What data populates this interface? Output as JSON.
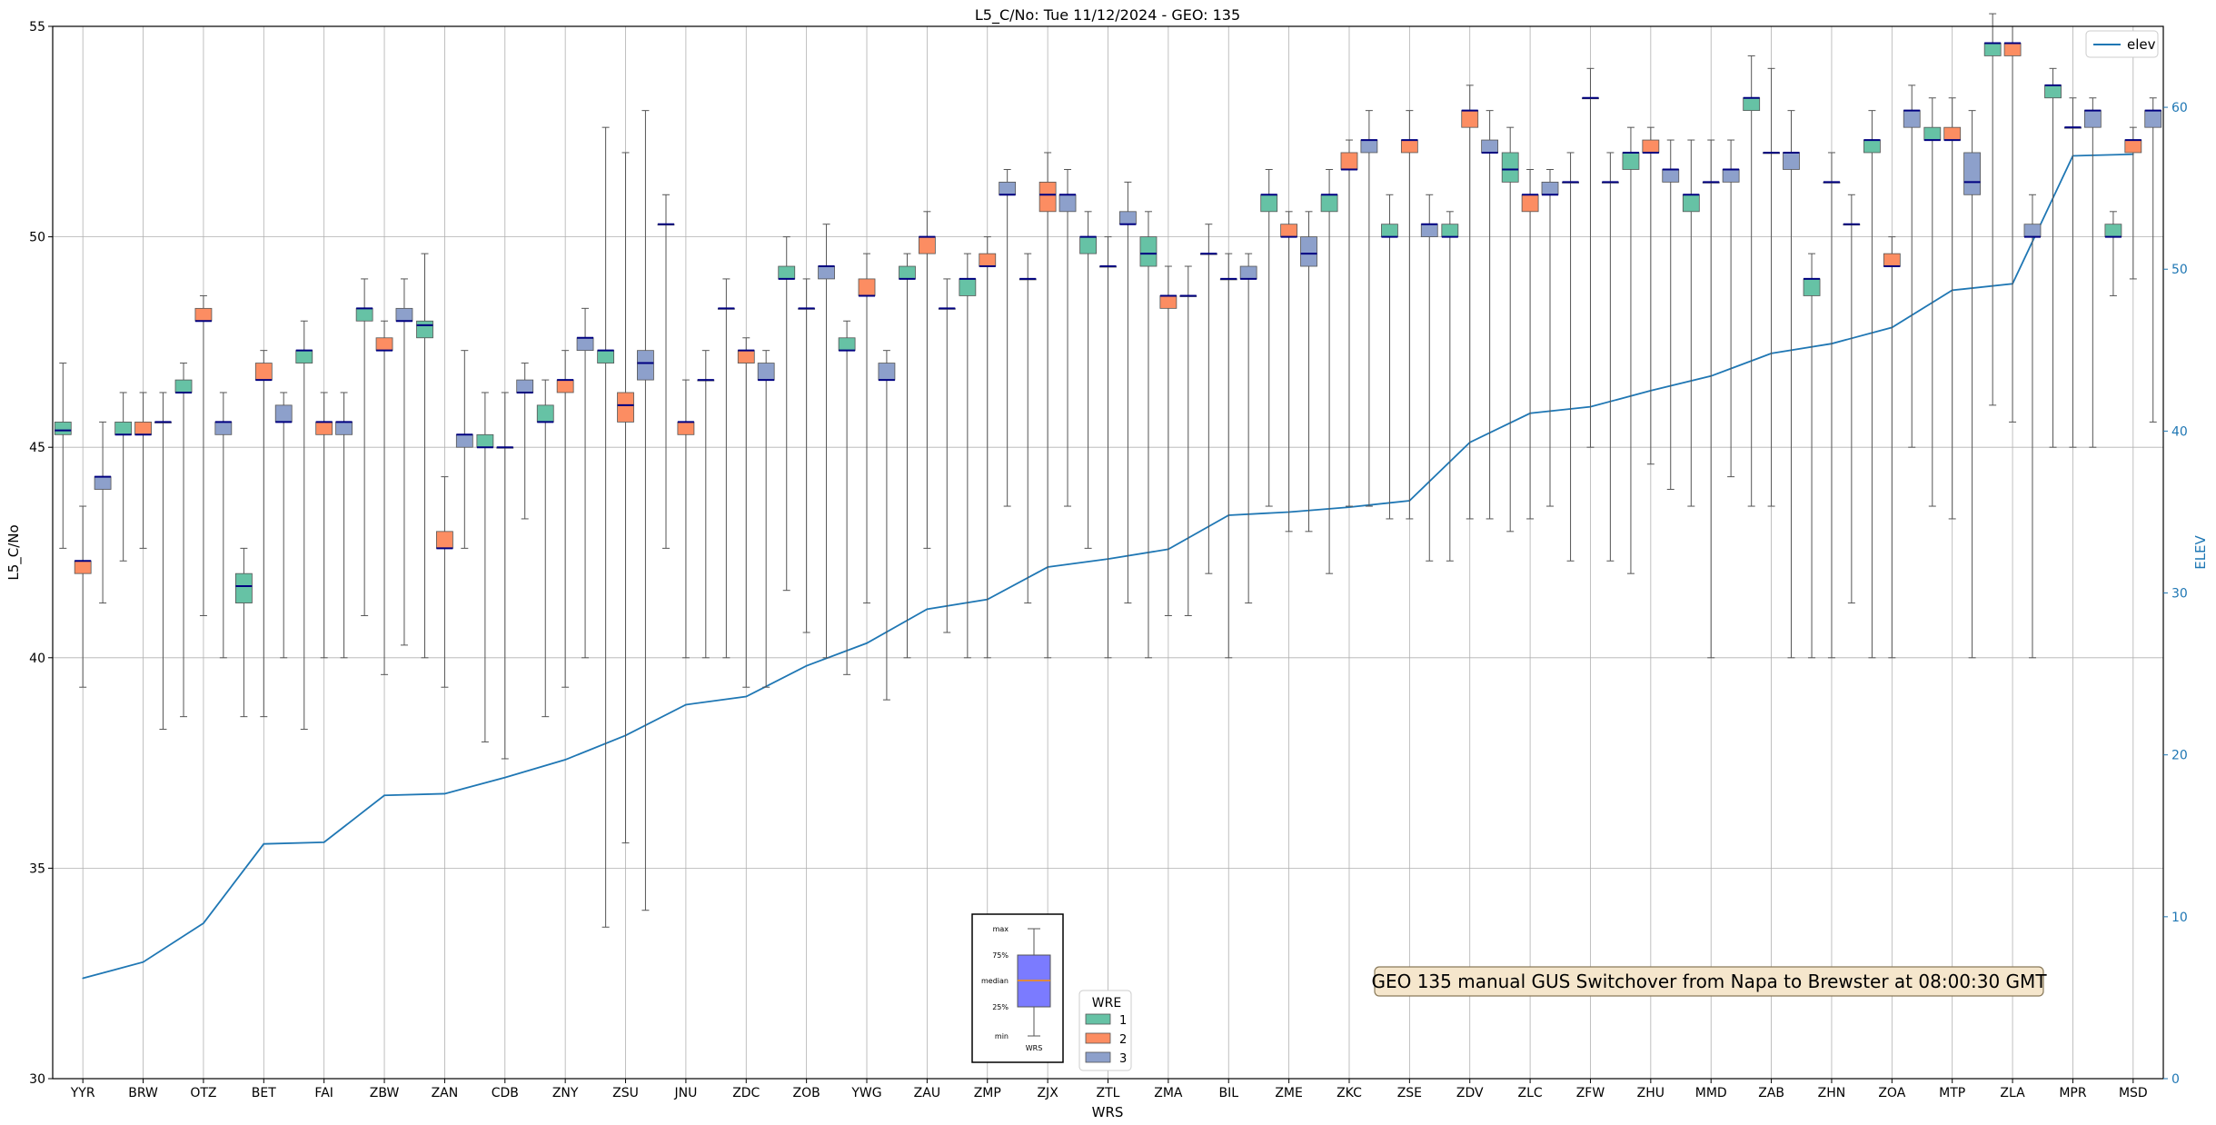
{
  "chart_data": {
    "type": "box",
    "title": "L5_C/No: Tue 11/12/2024 - GEO: 135",
    "xlabel": "WRS",
    "ylabel": "L5_C/No",
    "y2label": "ELEV",
    "ylim": [
      30,
      55
    ],
    "y2lim": [
      0,
      65
    ],
    "yticks": [
      30,
      35,
      40,
      45,
      50,
      55
    ],
    "y2ticks": [
      0,
      10,
      20,
      30,
      40,
      50,
      60
    ],
    "grid": true,
    "categories": [
      "YYR",
      "BRW",
      "OTZ",
      "BET",
      "FAI",
      "ZBW",
      "ZAN",
      "CDB",
      "ZNY",
      "ZSU",
      "JNU",
      "ZDC",
      "ZOB",
      "YWG",
      "ZAU",
      "ZMP",
      "ZJX",
      "ZTL",
      "ZMA",
      "BIL",
      "ZME",
      "ZKC",
      "ZSE",
      "ZDV",
      "ZLC",
      "ZFW",
      "ZHU",
      "MMD",
      "ZAB",
      "ZHN",
      "ZOA",
      "MTP",
      "ZLA",
      "MPR",
      "MSD"
    ],
    "elev": [
      6.2,
      7.2,
      9.6,
      14.5,
      14.6,
      17.5,
      17.6,
      18.6,
      19.7,
      21.2,
      23.1,
      23.6,
      25.5,
      26.9,
      29.0,
      29.6,
      31.6,
      32.1,
      32.7,
      34.8,
      35.0,
      35.3,
      35.7,
      39.3,
      41.1,
      41.5,
      42.5,
      43.4,
      44.8,
      45.4,
      46.4,
      48.7,
      49.1,
      57.0,
      57.1
    ],
    "legend_elev": "elev",
    "wre_legend": {
      "title": "WRE",
      "labels": [
        "1",
        "2",
        "3"
      ],
      "colors": [
        "#66c2a5",
        "#fc8d62",
        "#8da0cb"
      ]
    },
    "annotation": "GEO 135 manual GUS Switchover from Napa to Brewster at 08:00:30 GMT",
    "key_box": {
      "labels": [
        "max",
        "75%",
        "median",
        "25%",
        "min"
      ],
      "xlabel": "WRS"
    },
    "series": [
      {
        "wre": 1,
        "boxes": [
          [
            0,
            42.6,
            45.3,
            45.4,
            45.6,
            47.0
          ],
          [
            1,
            42.3,
            45.3,
            45.3,
            45.6,
            46.3
          ],
          [
            2,
            38.6,
            46.3,
            46.3,
            46.6,
            47.0
          ],
          [
            3,
            38.6,
            41.3,
            41.7,
            42.0,
            42.6
          ],
          [
            4,
            38.3,
            47.0,
            47.3,
            47.3,
            48.0
          ],
          [
            5,
            41.0,
            48.0,
            48.3,
            48.3,
            49.0
          ],
          [
            6,
            40.0,
            47.6,
            47.9,
            48.0,
            49.6
          ],
          [
            7,
            38.0,
            45.0,
            45.0,
            45.3,
            46.3
          ],
          [
            8,
            38.6,
            45.6,
            45.6,
            46.0,
            46.6
          ],
          [
            9,
            33.6,
            47.0,
            47.3,
            47.3,
            52.6
          ],
          [
            10,
            42.6,
            50.3,
            50.3,
            50.3,
            51.0
          ],
          [
            11,
            40.0,
            48.3,
            48.3,
            48.3,
            49.0
          ],
          [
            12,
            41.6,
            49.0,
            49.0,
            49.3,
            50.0
          ],
          [
            13,
            39.6,
            47.3,
            47.3,
            47.6,
            48.0
          ],
          [
            14,
            40.0,
            49.0,
            49.0,
            49.3,
            49.6
          ],
          [
            15,
            40.0,
            48.6,
            49.0,
            49.0,
            49.6
          ],
          [
            16,
            41.3,
            49.0,
            49.0,
            49.0,
            49.6
          ],
          [
            17,
            42.6,
            49.6,
            50.0,
            50.0,
            50.6
          ],
          [
            18,
            40.0,
            49.3,
            49.6,
            50.0,
            50.6
          ],
          [
            19,
            42.0,
            49.6,
            49.6,
            49.6,
            50.3
          ],
          [
            20,
            43.6,
            50.6,
            51.0,
            51.0,
            51.6
          ],
          [
            21,
            42.0,
            50.6,
            51.0,
            51.0,
            51.6
          ],
          [
            22,
            43.3,
            50.0,
            50.0,
            50.3,
            51.0
          ],
          [
            23,
            42.3,
            50.0,
            50.0,
            50.3,
            50.6
          ],
          [
            24,
            43.0,
            51.3,
            51.6,
            52.0,
            52.6
          ],
          [
            25,
            42.3,
            51.3,
            51.3,
            51.3,
            52.0
          ],
          [
            26,
            42.0,
            51.6,
            52.0,
            52.0,
            52.6
          ],
          [
            27,
            43.6,
            50.6,
            51.0,
            51.0,
            52.3
          ],
          [
            28,
            43.6,
            53.0,
            53.3,
            53.3,
            54.3
          ],
          [
            29,
            40.0,
            48.6,
            49.0,
            49.0,
            49.6
          ],
          [
            30,
            40.0,
            52.0,
            52.3,
            52.3,
            53.0
          ],
          [
            31,
            43.6,
            52.3,
            52.3,
            52.6,
            53.3
          ],
          [
            32,
            46.0,
            54.3,
            54.6,
            54.6,
            55.3
          ],
          [
            33,
            45.0,
            53.3,
            53.6,
            53.6,
            54.0
          ],
          [
            34,
            48.6,
            50.0,
            50.0,
            50.3,
            50.6
          ]
        ]
      },
      {
        "wre": 2,
        "boxes": [
          [
            0,
            39.3,
            42.0,
            42.3,
            42.3,
            43.6
          ],
          [
            1,
            42.6,
            45.3,
            45.3,
            45.6,
            46.3
          ],
          [
            2,
            41.0,
            48.0,
            48.0,
            48.3,
            48.6
          ],
          [
            3,
            38.6,
            46.6,
            46.6,
            47.0,
            47.3
          ],
          [
            4,
            40.0,
            45.3,
            45.6,
            45.6,
            46.3
          ],
          [
            5,
            39.6,
            47.3,
            47.3,
            47.6,
            48.0
          ],
          [
            6,
            39.3,
            42.6,
            42.6,
            43.0,
            44.3
          ],
          [
            7,
            37.6,
            45.0,
            45.0,
            45.0,
            46.3
          ],
          [
            8,
            39.3,
            46.3,
            46.6,
            46.6,
            47.3
          ],
          [
            9,
            35.6,
            45.6,
            46.0,
            46.3,
            52.0
          ],
          [
            10,
            40.0,
            45.3,
            45.6,
            45.6,
            46.6
          ],
          [
            11,
            39.3,
            47.0,
            47.3,
            47.3,
            47.6
          ],
          [
            12,
            40.6,
            48.3,
            48.3,
            48.3,
            49.0
          ],
          [
            13,
            41.3,
            48.6,
            48.6,
            49.0,
            49.6
          ],
          [
            14,
            42.6,
            49.6,
            50.0,
            50.0,
            50.6
          ],
          [
            15,
            40.0,
            49.3,
            49.3,
            49.6,
            50.0
          ],
          [
            16,
            40.0,
            50.6,
            51.0,
            51.3,
            52.0
          ],
          [
            17,
            40.0,
            49.3,
            49.3,
            49.3,
            50.0
          ],
          [
            18,
            41.0,
            48.3,
            48.6,
            48.6,
            49.3
          ],
          [
            19,
            40.0,
            49.0,
            49.0,
            49.0,
            49.6
          ],
          [
            20,
            43.0,
            50.0,
            50.0,
            50.3,
            50.6
          ],
          [
            21,
            43.6,
            51.6,
            51.6,
            52.0,
            52.3
          ],
          [
            22,
            43.3,
            52.0,
            52.3,
            52.3,
            53.0
          ],
          [
            23,
            43.3,
            52.6,
            53.0,
            53.0,
            53.6
          ],
          [
            24,
            43.3,
            50.6,
            51.0,
            51.0,
            51.6
          ],
          [
            25,
            45.0,
            53.3,
            53.3,
            53.3,
            54.0
          ],
          [
            26,
            44.6,
            52.0,
            52.0,
            52.3,
            52.6
          ],
          [
            27,
            40.0,
            51.3,
            51.3,
            51.3,
            52.3
          ],
          [
            28,
            43.6,
            52.0,
            52.0,
            52.0,
            54.0
          ],
          [
            29,
            40.0,
            51.3,
            51.3,
            51.3,
            52.0
          ],
          [
            30,
            40.0,
            49.3,
            49.3,
            49.6,
            50.0
          ],
          [
            31,
            43.3,
            52.3,
            52.3,
            52.6,
            53.3
          ],
          [
            32,
            45.6,
            54.3,
            54.6,
            54.6,
            55.0
          ],
          [
            33,
            45.0,
            52.6,
            52.6,
            52.6,
            53.3
          ],
          [
            34,
            49.0,
            52.0,
            52.3,
            52.3,
            52.6
          ]
        ]
      },
      {
        "wre": 3,
        "boxes": [
          [
            0,
            41.3,
            44.0,
            44.3,
            44.3,
            45.6
          ],
          [
            1,
            38.3,
            45.6,
            45.6,
            45.6,
            46.3
          ],
          [
            2,
            40.0,
            45.3,
            45.6,
            45.6,
            46.3
          ],
          [
            3,
            40.0,
            45.6,
            45.6,
            46.0,
            46.3
          ],
          [
            4,
            40.0,
            45.3,
            45.6,
            45.6,
            46.3
          ],
          [
            5,
            40.3,
            48.0,
            48.0,
            48.3,
            49.0
          ],
          [
            6,
            42.6,
            45.0,
            45.3,
            45.3,
            47.3
          ],
          [
            7,
            43.3,
            46.3,
            46.3,
            46.6,
            47.0
          ],
          [
            8,
            40.0,
            47.3,
            47.6,
            47.6,
            48.3
          ],
          [
            9,
            34.0,
            46.6,
            47.0,
            47.3,
            53.0
          ],
          [
            10,
            40.0,
            46.6,
            46.6,
            46.6,
            47.3
          ],
          [
            11,
            39.3,
            46.6,
            46.6,
            47.0,
            47.3
          ],
          [
            12,
            40.0,
            49.0,
            49.3,
            49.3,
            50.3
          ],
          [
            13,
            39.0,
            46.6,
            46.6,
            47.0,
            47.3
          ],
          [
            14,
            40.6,
            48.3,
            48.3,
            48.3,
            49.0
          ],
          [
            15,
            43.6,
            51.0,
            51.0,
            51.3,
            51.6
          ],
          [
            16,
            43.6,
            50.6,
            51.0,
            51.0,
            51.6
          ],
          [
            17,
            41.3,
            50.3,
            50.3,
            50.6,
            51.3
          ],
          [
            18,
            41.0,
            48.6,
            48.6,
            48.6,
            49.3
          ],
          [
            19,
            41.3,
            49.0,
            49.0,
            49.3,
            49.6
          ],
          [
            20,
            43.0,
            49.3,
            49.6,
            50.0,
            50.6
          ],
          [
            21,
            43.6,
            52.0,
            52.3,
            52.3,
            53.0
          ],
          [
            22,
            42.3,
            50.0,
            50.3,
            50.3,
            51.0
          ],
          [
            23,
            43.3,
            52.0,
            52.0,
            52.3,
            53.0
          ],
          [
            24,
            43.6,
            51.0,
            51.0,
            51.3,
            51.6
          ],
          [
            25,
            42.3,
            51.3,
            51.3,
            51.3,
            52.0
          ],
          [
            26,
            44.0,
            51.3,
            51.6,
            51.6,
            52.3
          ],
          [
            27,
            44.3,
            51.3,
            51.6,
            51.6,
            52.3
          ],
          [
            28,
            40.0,
            51.6,
            52.0,
            52.0,
            53.0
          ],
          [
            29,
            41.3,
            50.3,
            50.3,
            50.3,
            51.0
          ],
          [
            30,
            45.0,
            52.6,
            53.0,
            53.0,
            53.6
          ],
          [
            31,
            40.0,
            51.0,
            51.3,
            52.0,
            53.0
          ],
          [
            32,
            40.0,
            50.0,
            50.0,
            50.3,
            51.0
          ],
          [
            33,
            45.0,
            52.6,
            53.0,
            53.0,
            53.3
          ],
          [
            34,
            45.6,
            52.6,
            53.0,
            53.0,
            53.3
          ]
        ]
      }
    ]
  }
}
